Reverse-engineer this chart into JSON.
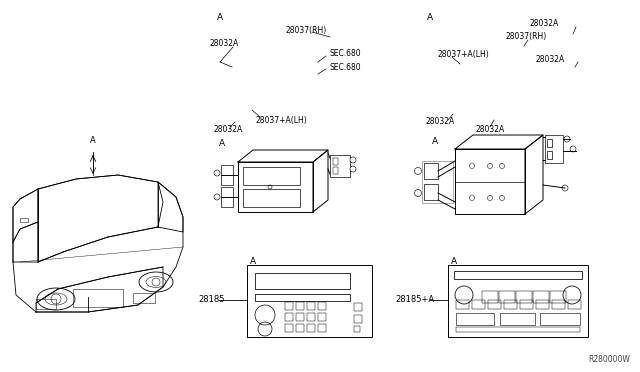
{
  "background_color": "#ffffff",
  "line_color": "#000000",
  "text_color": "#000000",
  "diagram_ref": "R280000W",
  "car_A": "A",
  "left_A_top": "A",
  "left_A_bottom": "A",
  "right_A_top": "A",
  "right_A_bottom": "A",
  "bottom_A_left": "A",
  "bottom_A_right": "A",
  "label_28037RH_left": "28037(RH)",
  "label_28032A_left": "28032A",
  "label_SEC680_1": "SEC.680",
  "label_SEC680_2": "SEC.680",
  "label_28037LH_left": "28037+A(LH)",
  "label_28032A_left2": "28032A",
  "label_28032A_right_top": "28032A",
  "label_28037RH_right": "28037(RH)",
  "label_28037LH_right": "28037+A(LH)",
  "label_28032A_right_mid": "28032A",
  "label_28032A_right_bot1": "28032A",
  "label_28032A_right_bot2": "28032A",
  "label_28185": "28185",
  "label_28185A": "28185+A"
}
